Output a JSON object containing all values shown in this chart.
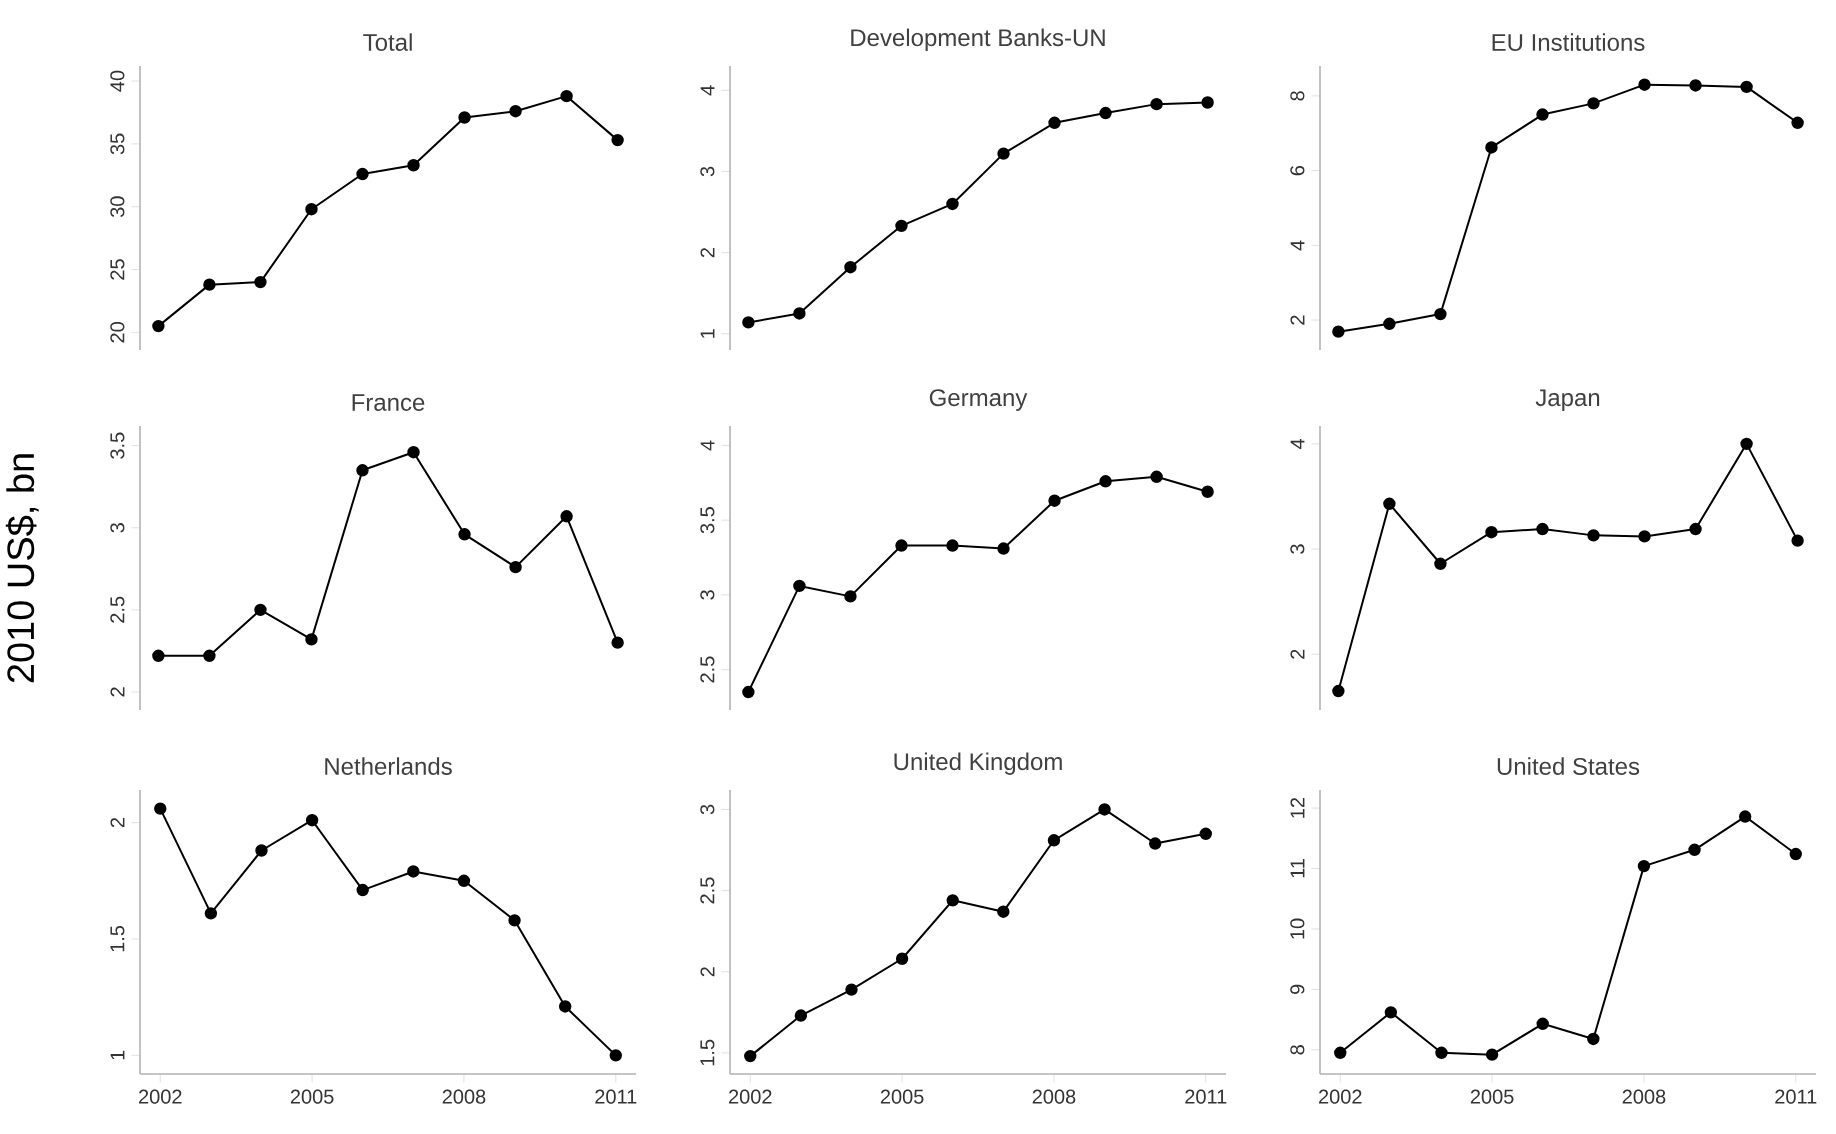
{
  "chart_data": [
    {
      "type": "line",
      "title": "Total",
      "x": [
        2002,
        2003,
        2004,
        2005,
        2006,
        2007,
        2008,
        2009,
        2010,
        2011
      ],
      "values": [
        20.5,
        23.8,
        24,
        29.8,
        32.6,
        33.3,
        37.1,
        37.6,
        38.8,
        35.3
      ],
      "color": "#000000",
      "marker": "circle",
      "ylim": [
        18.6,
        41.2
      ],
      "yticks": [
        20,
        25,
        30,
        35,
        40
      ],
      "tick_labels": "y"
    },
    {
      "type": "line",
      "title": "Development Banks-UN",
      "x": [
        2002,
        2003,
        2004,
        2005,
        2006,
        2007,
        2008,
        2009,
        2010,
        2011
      ],
      "values": [
        1.14,
        1.25,
        1.82,
        2.33,
        2.6,
        3.22,
        3.6,
        3.72,
        3.83,
        3.85
      ],
      "color": "#000000",
      "marker": "circle",
      "ylim": [
        0.8,
        4.3
      ],
      "yticks": [
        1,
        2,
        3,
        4
      ],
      "tick_labels": "y"
    },
    {
      "type": "line",
      "title": "EU Institutions",
      "x": [
        2002,
        2003,
        2004,
        2005,
        2006,
        2007,
        2008,
        2009,
        2010,
        2011
      ],
      "values": [
        1.69,
        1.9,
        2.16,
        6.62,
        7.5,
        7.8,
        8.3,
        8.28,
        8.24,
        7.28
      ],
      "color": "#000000",
      "marker": "circle",
      "ylim": [
        1.2,
        8.8
      ],
      "yticks": [
        2,
        4,
        6,
        8
      ],
      "tick_labels": "y"
    },
    {
      "type": "line",
      "title": "France",
      "ylabel": "2010 US$, bn",
      "x": [
        2002,
        2003,
        2004,
        2005,
        2006,
        2007,
        2008,
        2009,
        2010,
        2011
      ],
      "values": [
        2.22,
        2.22,
        2.5,
        2.32,
        3.35,
        3.46,
        2.96,
        2.76,
        3.07,
        2.3
      ],
      "color": "#000000",
      "marker": "circle",
      "ylim": [
        1.89,
        3.62
      ],
      "yticks": [
        2,
        2.5,
        3,
        3.5
      ],
      "tick_labels": "y"
    },
    {
      "type": "line",
      "title": "Germany",
      "x": [
        2002,
        2003,
        2004,
        2005,
        2006,
        2007,
        2008,
        2009,
        2010,
        2011
      ],
      "values": [
        2.35,
        3.06,
        2.99,
        3.33,
        3.33,
        3.31,
        3.63,
        3.76,
        3.79,
        3.69
      ],
      "color": "#000000",
      "marker": "circle",
      "ylim": [
        2.23,
        4.13
      ],
      "yticks": [
        2.5,
        3,
        3.5,
        4
      ],
      "tick_labels": "y"
    },
    {
      "type": "line",
      "title": "Japan",
      "x": [
        2002,
        2003,
        2004,
        2005,
        2006,
        2007,
        2008,
        2009,
        2010,
        2011
      ],
      "values": [
        1.65,
        3.43,
        2.86,
        3.16,
        3.19,
        3.13,
        3.12,
        3.19,
        4.0,
        3.08
      ],
      "color": "#000000",
      "marker": "circle",
      "ylim": [
        1.47,
        4.17
      ],
      "yticks": [
        2,
        3,
        4
      ],
      "tick_labels": "y"
    },
    {
      "type": "line",
      "title": "Netherlands",
      "x": [
        2002,
        2003,
        2004,
        2005,
        2006,
        2007,
        2008,
        2009,
        2010,
        2011
      ],
      "values": [
        2.06,
        1.61,
        1.88,
        2.01,
        1.71,
        1.79,
        1.75,
        1.58,
        1.21,
        1.0
      ],
      "color": "#000000",
      "marker": "circle",
      "xlim": [
        2001.6,
        2011.4
      ],
      "ylim": [
        0.92,
        2.14
      ],
      "xticks": [
        2002,
        2005,
        2008,
        2011
      ],
      "yticks": [
        1,
        1.5,
        2
      ]
    },
    {
      "type": "line",
      "title": "United Kingdom",
      "x": [
        2002,
        2003,
        2004,
        2005,
        2006,
        2007,
        2008,
        2009,
        2010,
        2011
      ],
      "values": [
        1.48,
        1.73,
        1.89,
        2.08,
        2.44,
        2.37,
        2.81,
        3.0,
        2.79,
        2.85
      ],
      "color": "#000000",
      "marker": "circle",
      "xlim": [
        2001.6,
        2011.4
      ],
      "ylim": [
        1.37,
        3.12
      ],
      "xticks": [
        2002,
        2005,
        2008,
        2011
      ],
      "yticks": [
        1.5,
        2,
        2.5,
        3
      ]
    },
    {
      "type": "line",
      "title": "United States",
      "x": [
        2002,
        2003,
        2004,
        2005,
        2006,
        2007,
        2008,
        2009,
        2010,
        2011
      ],
      "values": [
        7.95,
        8.62,
        7.95,
        7.92,
        8.43,
        8.18,
        11.04,
        11.31,
        11.86,
        11.24
      ],
      "color": "#000000",
      "marker": "circle",
      "xlim": [
        2001.6,
        2011.4
      ],
      "ylim": [
        7.6,
        12.3
      ],
      "xticks": [
        2002,
        2005,
        2008,
        2011
      ],
      "yticks": [
        8,
        9,
        10,
        11,
        12
      ]
    }
  ]
}
